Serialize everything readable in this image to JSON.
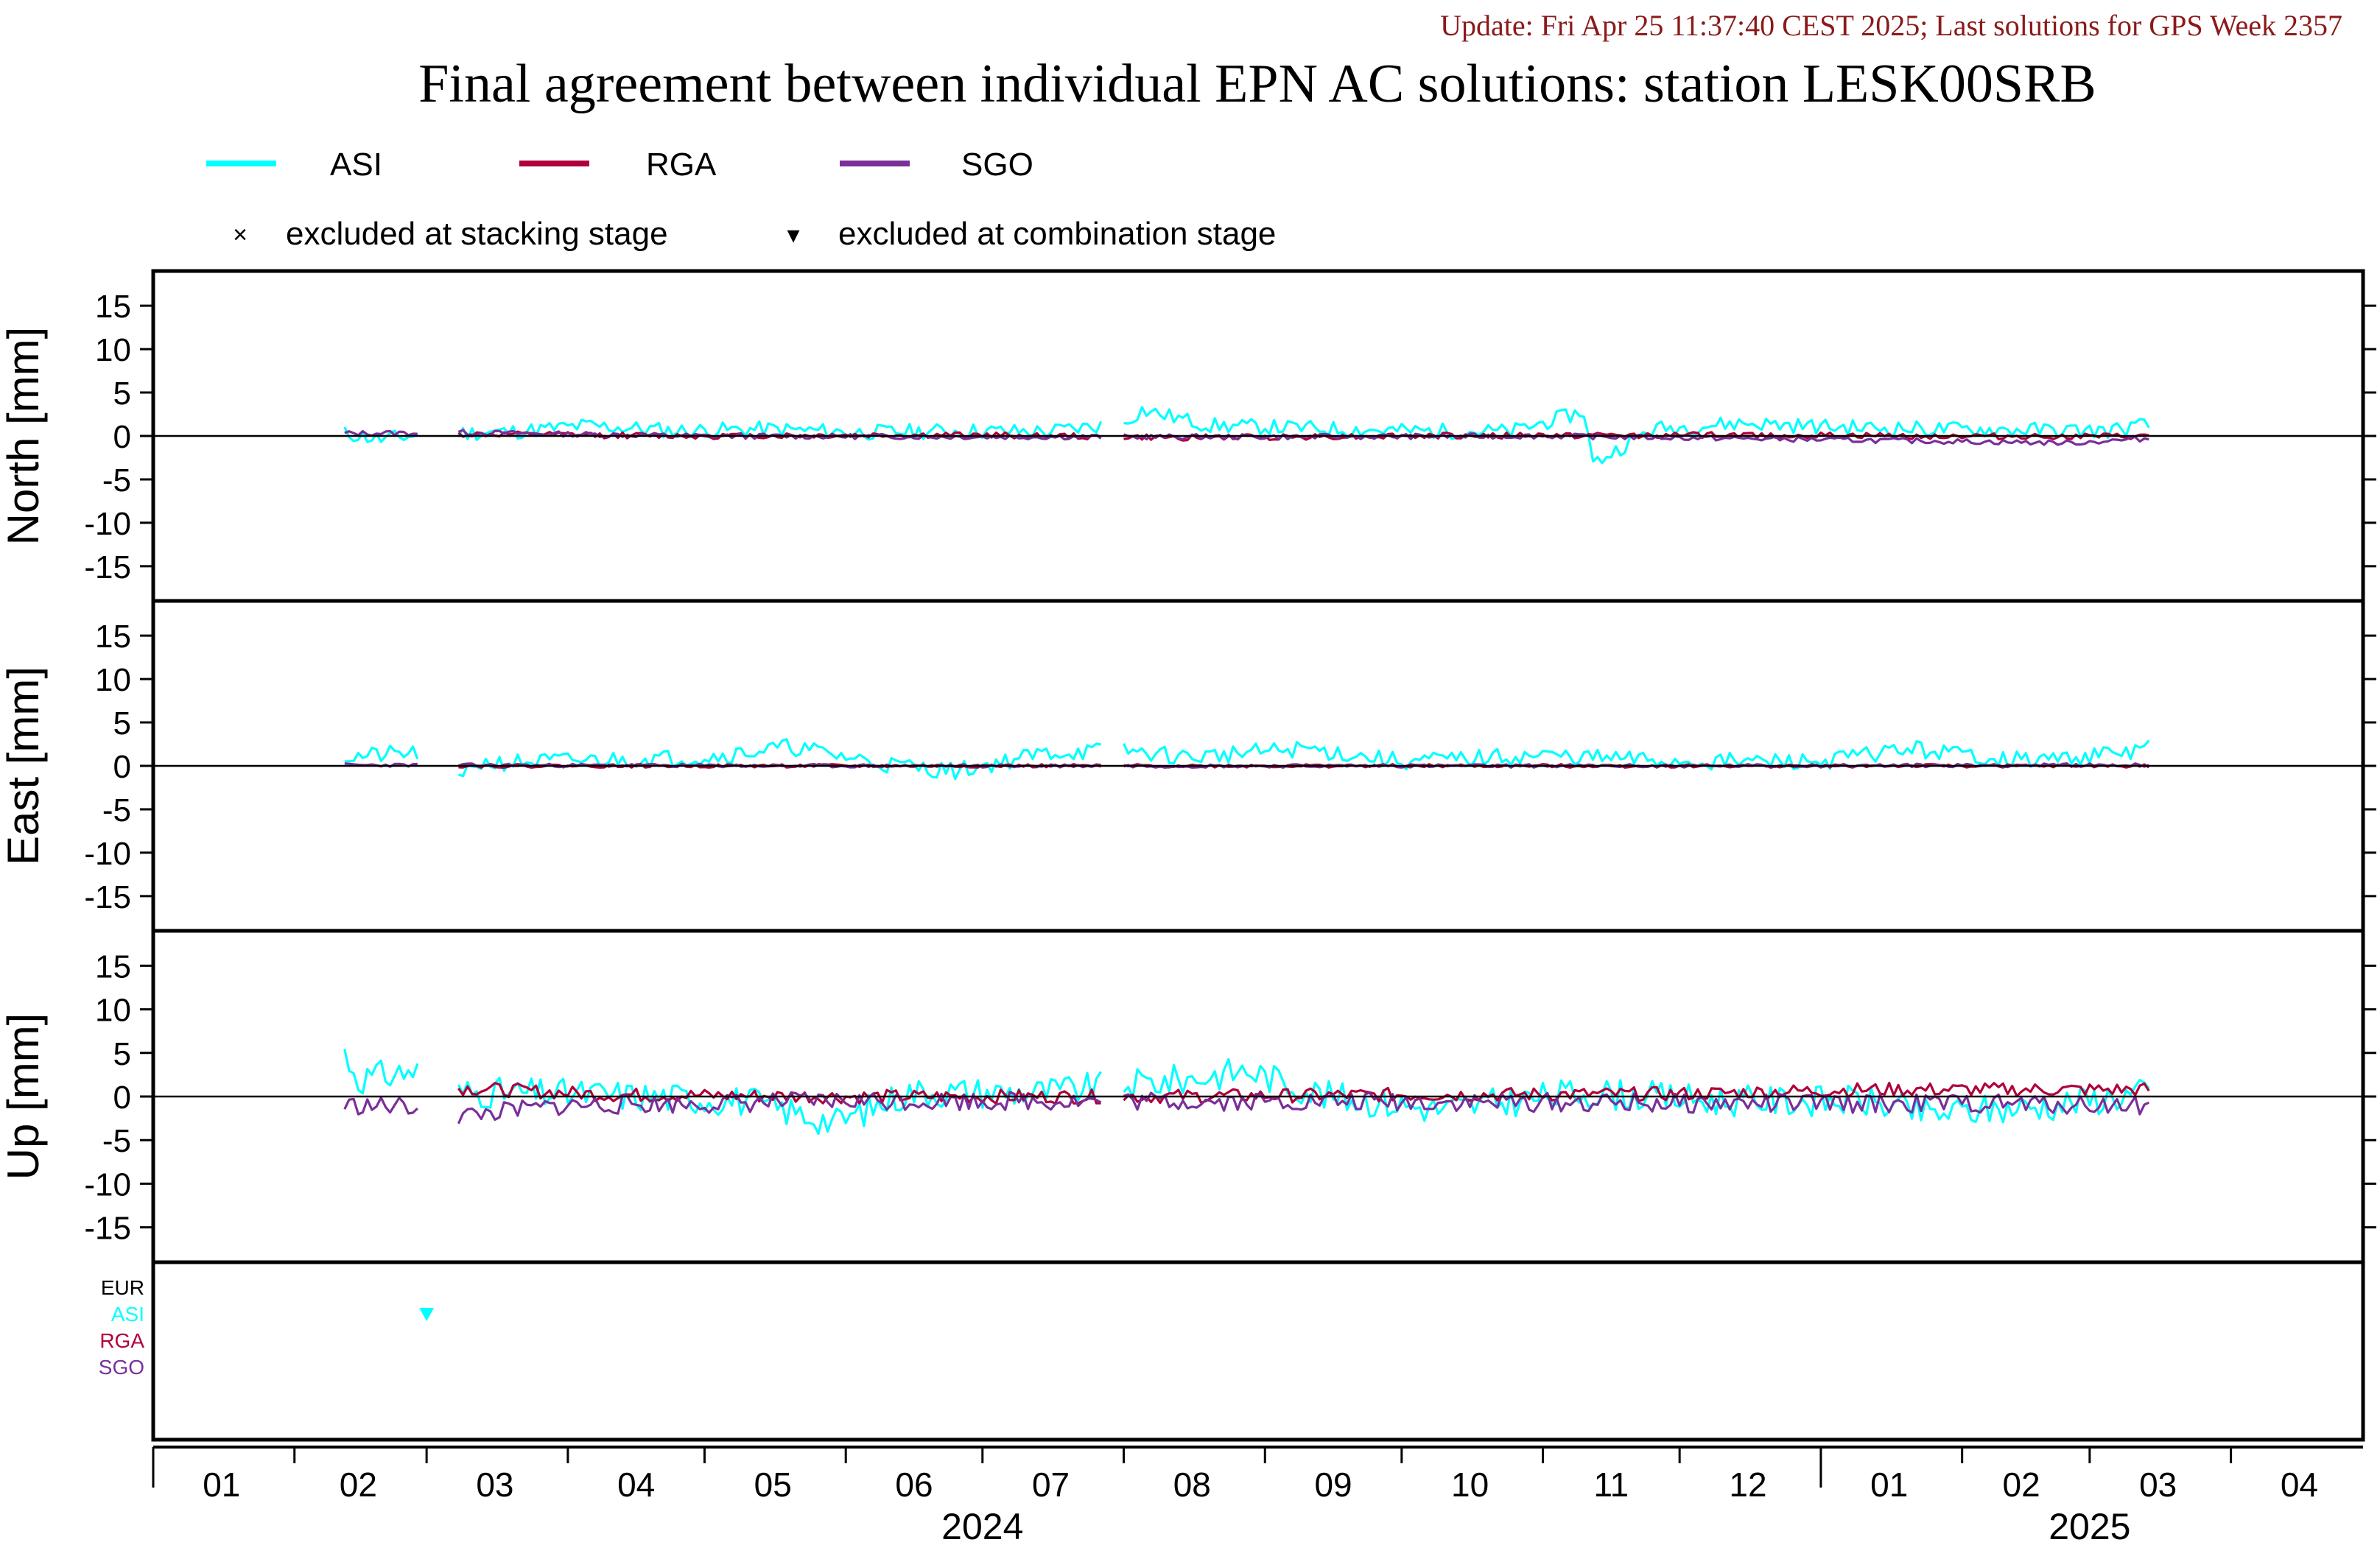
{
  "header": {
    "update": "Update: Fri Apr 25 11:37:40 CEST 2025; Last solutions for GPS Week 2357",
    "title": "Final agreement between individual EPN AC solutions: station LESK00SRB"
  },
  "legend": {
    "series": [
      {
        "name": "ASI",
        "color": "#00ffff"
      },
      {
        "name": "RGA",
        "color": "#b0003a"
      },
      {
        "name": "SGO",
        "color": "#7a2f9a"
      }
    ],
    "markers": [
      {
        "symbol": "×",
        "label": "excluded at stacking stage"
      },
      {
        "symbol": "▾",
        "label": "excluded at combination stage"
      }
    ]
  },
  "exclusion_panel": {
    "labels": [
      {
        "name": "EUR",
        "color": "#000000"
      },
      {
        "name": "ASI",
        "color": "#00ffff"
      },
      {
        "name": "RGA",
        "color": "#b0003a"
      },
      {
        "name": "SGO",
        "color": "#7a2f9a"
      }
    ]
  },
  "chart_data": {
    "type": "line",
    "x_axis": {
      "range": [
        "2024-01-01",
        "2025-04-30"
      ],
      "month_ticks": [
        {
          "label": "01",
          "date": "2024-01-16"
        },
        {
          "label": "02",
          "date": "2024-02-15"
        },
        {
          "label": "03",
          "date": "2024-03-16"
        },
        {
          "label": "04",
          "date": "2024-04-16"
        },
        {
          "label": "05",
          "date": "2024-05-16"
        },
        {
          "label": "06",
          "date": "2024-06-16"
        },
        {
          "label": "07",
          "date": "2024-07-16"
        },
        {
          "label": "08",
          "date": "2024-08-16"
        },
        {
          "label": "09",
          "date": "2024-09-16"
        },
        {
          "label": "10",
          "date": "2024-10-16"
        },
        {
          "label": "11",
          "date": "2024-11-16"
        },
        {
          "label": "12",
          "date": "2024-12-16"
        },
        {
          "label": "01",
          "date": "2025-01-16"
        },
        {
          "label": "02",
          "date": "2025-02-14"
        },
        {
          "label": "03",
          "date": "2025-03-16"
        },
        {
          "label": "04",
          "date": "2025-04-16"
        }
      ],
      "year_labels": [
        {
          "label": "2024",
          "date": "2024-07-01"
        },
        {
          "label": "2025",
          "date": "2025-03-01"
        }
      ]
    },
    "panels": [
      {
        "ylabel": "North [mm]",
        "ylim": [
          -19,
          19
        ],
        "yticks": [
          15,
          10,
          5,
          0,
          -5,
          -10,
          -15
        ],
        "series": [
          {
            "name": "ASI",
            "samples": [
              [
                "2024-02-12",
                0.3
              ],
              [
                "2024-02-20",
                -0.4
              ],
              [
                "2024-03-01",
                0.2
              ],
              [
                "2024-03-20",
                0.5
              ],
              [
                "2024-04-05",
                1.2
              ],
              [
                "2024-04-25",
                0.6
              ],
              [
                "2024-05-15",
                0.8
              ],
              [
                "2024-06-05",
                0.4
              ],
              [
                "2024-06-25",
                0.6
              ],
              [
                "2024-07-15",
                0.5
              ],
              [
                "2024-08-01",
                1.5
              ],
              [
                "2024-08-05",
                3.0
              ],
              [
                "2024-08-20",
                1.2
              ],
              [
                "2024-09-10",
                0.9
              ],
              [
                "2024-10-01",
                0.6
              ],
              [
                "2024-10-25",
                0.5
              ],
              [
                "2024-11-10",
                2.8
              ],
              [
                "2024-11-12",
                -3.2
              ],
              [
                "2024-11-25",
                0.8
              ],
              [
                "2024-12-15",
                1.5
              ],
              [
                "2025-01-05",
                1.0
              ],
              [
                "2025-01-25",
                0.8
              ],
              [
                "2025-02-15",
                0.7
              ],
              [
                "2025-03-05",
                0.6
              ],
              [
                "2025-03-14",
                1.3
              ]
            ],
            "noise": 0.9,
            "seed": 11
          },
          {
            "name": "RGA",
            "samples": [
              [
                "2024-03-08",
                0.2
              ],
              [
                "2024-05-01",
                0.0
              ],
              [
                "2024-07-01",
                0.1
              ],
              [
                "2024-08-10",
                -0.2
              ],
              [
                "2024-10-01",
                0.0
              ],
              [
                "2024-12-01",
                0.1
              ],
              [
                "2025-03-14",
                -0.1
              ]
            ],
            "noise": 0.35,
            "seed": 12
          },
          {
            "name": "SGO",
            "samples": [
              [
                "2024-02-12",
                0.3
              ],
              [
                "2024-03-08",
                0.4
              ],
              [
                "2024-05-01",
                0.0
              ],
              [
                "2024-07-01",
                -0.1
              ],
              [
                "2024-09-01",
                -0.1
              ],
              [
                "2024-11-01",
                0.0
              ],
              [
                "2025-02-25",
                -0.8
              ],
              [
                "2025-03-14",
                -0.3
              ]
            ],
            "noise": 0.3,
            "seed": 13
          }
        ]
      },
      {
        "ylabel": "East [mm]",
        "ylim": [
          -19,
          19
        ],
        "yticks": [
          15,
          10,
          5,
          0,
          -5,
          -10,
          -15
        ],
        "series": [
          {
            "name": "ASI",
            "samples": [
              [
                "2024-02-12",
                1.0
              ],
              [
                "2024-02-28",
                1.5
              ],
              [
                "2024-03-08",
                -2.0
              ],
              [
                "2024-03-12",
                0.3
              ],
              [
                "2024-04-01",
                0.6
              ],
              [
                "2024-05-01",
                1.0
              ],
              [
                "2024-05-20",
                2.2
              ],
              [
                "2024-06-10",
                0.2
              ],
              [
                "2024-06-25",
                -0.6
              ],
              [
                "2024-07-15",
                1.5
              ],
              [
                "2024-08-01",
                1.8
              ],
              [
                "2024-08-15",
                1.0
              ],
              [
                "2024-09-10",
                2.0
              ],
              [
                "2024-10-01",
                0.5
              ],
              [
                "2024-11-01",
                1.2
              ],
              [
                "2024-12-01",
                0.5
              ],
              [
                "2025-01-01",
                0.5
              ],
              [
                "2025-01-20",
                2.0
              ],
              [
                "2025-02-15",
                0.6
              ],
              [
                "2025-03-10",
                1.5
              ],
              [
                "2025-03-14",
                3.0
              ]
            ],
            "noise": 1.0,
            "seed": 21
          },
          {
            "name": "RGA",
            "samples": [
              [
                "2024-03-08",
                0.0
              ],
              [
                "2024-06-01",
                0.0
              ],
              [
                "2024-09-01",
                0.0
              ],
              [
                "2024-12-01",
                0.0
              ],
              [
                "2025-03-14",
                0.0
              ]
            ],
            "noise": 0.2,
            "seed": 22
          },
          {
            "name": "SGO",
            "samples": [
              [
                "2024-02-12",
                0.1
              ],
              [
                "2024-06-01",
                0.0
              ],
              [
                "2024-09-01",
                0.0
              ],
              [
                "2024-12-01",
                0.0
              ],
              [
                "2025-03-14",
                0.1
              ]
            ],
            "noise": 0.2,
            "seed": 23
          }
        ]
      },
      {
        "ylabel": "Up [mm]",
        "ylim": [
          -19,
          19
        ],
        "yticks": [
          15,
          10,
          5,
          0,
          -5,
          -10,
          -15
        ],
        "series": [
          {
            "name": "ASI",
            "samples": [
              [
                "2024-02-12",
                5.0
              ],
              [
                "2024-02-15",
                2.0
              ],
              [
                "2024-02-28",
                3.0
              ],
              [
                "2024-03-08",
                0.5
              ],
              [
                "2024-04-10",
                0.2
              ],
              [
                "2024-05-10",
                -0.5
              ],
              [
                "2024-05-30",
                -3.0
              ],
              [
                "2024-06-15",
                0.5
              ],
              [
                "2024-07-15",
                0.5
              ],
              [
                "2024-08-15",
                2.0
              ],
              [
                "2024-08-28",
                3.0
              ],
              [
                "2024-09-15",
                0.0
              ],
              [
                "2024-10-10",
                -1.5
              ],
              [
                "2024-11-10",
                0.5
              ],
              [
                "2024-12-10",
                -0.5
              ],
              [
                "2025-01-10",
                -0.5
              ],
              [
                "2025-01-25",
                -2.0
              ],
              [
                "2025-02-20",
                -1.0
              ],
              [
                "2025-03-14",
                0.5
              ]
            ],
            "noise": 1.8,
            "seed": 31
          },
          {
            "name": "RGA",
            "samples": [
              [
                "2024-03-08",
                1.0
              ],
              [
                "2024-04-10",
                0.2
              ],
              [
                "2024-06-01",
                0.0
              ],
              [
                "2024-08-01",
                0.0
              ],
              [
                "2024-10-01",
                0.2
              ],
              [
                "2024-12-01",
                0.3
              ],
              [
                "2025-01-10",
                0.8
              ],
              [
                "2025-03-14",
                0.8
              ]
            ],
            "noise": 0.8,
            "seed": 32
          },
          {
            "name": "SGO",
            "samples": [
              [
                "2024-02-12",
                -1.0
              ],
              [
                "2024-02-28",
                -1.2
              ],
              [
                "2024-03-08",
                -2.2
              ],
              [
                "2024-04-01",
                -1.0
              ],
              [
                "2024-05-01",
                -0.8
              ],
              [
                "2024-06-01",
                -0.5
              ],
              [
                "2024-08-01",
                -0.5
              ],
              [
                "2024-10-01",
                -0.6
              ],
              [
                "2024-12-01",
                -0.8
              ],
              [
                "2025-02-01",
                -0.8
              ],
              [
                "2025-03-14",
                -1.0
              ]
            ],
            "noise": 1.1,
            "seed": 33
          }
        ]
      }
    ],
    "gaps": [
      [
        "2024-02-28",
        "2024-03-08"
      ],
      [
        "2024-07-27",
        "2024-08-01"
      ]
    ],
    "exclusions": [
      {
        "analysis_center": "ASI",
        "stage": "combination",
        "date": "2024-03-01"
      }
    ]
  }
}
